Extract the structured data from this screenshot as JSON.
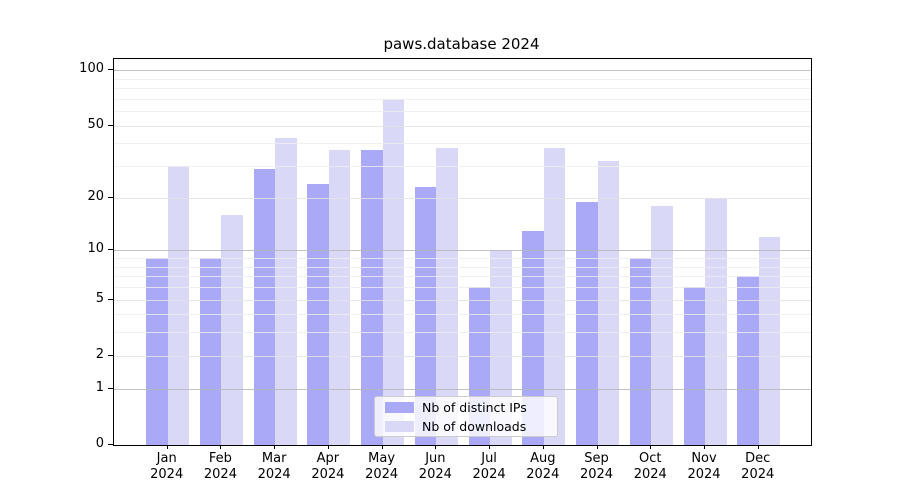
{
  "chart_data": {
    "type": "bar",
    "title": "paws.database 2024",
    "categories": [
      "Jan",
      "Feb",
      "Mar",
      "Apr",
      "May",
      "Jun",
      "Jul",
      "Aug",
      "Sep",
      "Oct",
      "Nov",
      "Dec"
    ],
    "year": "2024",
    "series": [
      {
        "name": "Nb of distinct IPs",
        "color": "#a9a9f7",
        "values": [
          9,
          9,
          29,
          24,
          37,
          23,
          6,
          13,
          19,
          9,
          6,
          7
        ]
      },
      {
        "name": "Nb of downloads",
        "color": "#d9d9f7",
        "values": [
          30,
          16,
          43,
          37,
          70,
          38,
          10,
          38,
          32,
          18,
          20,
          12
        ]
      }
    ],
    "yscale": "log1p",
    "ylim": [
      0,
      115
    ],
    "yticks": [
      0,
      1,
      2,
      5,
      10,
      20,
      50,
      100
    ],
    "decade_gridlines": [
      1,
      10,
      100
    ],
    "minor_gridlines": [
      3,
      4,
      6,
      7,
      8,
      9,
      30,
      40,
      60,
      70,
      80,
      90
    ],
    "grid": true,
    "legend_position": "lower center",
    "xlabel": "",
    "ylabel": ""
  }
}
